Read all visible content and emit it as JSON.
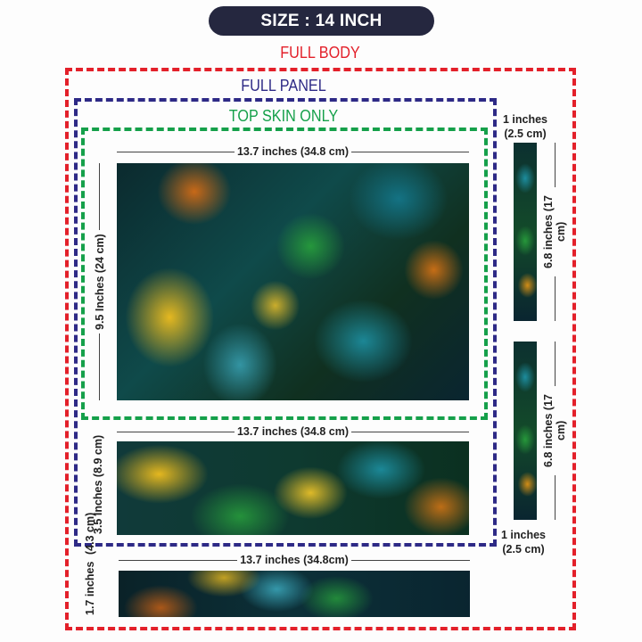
{
  "title": "SIZE : 14 INCH",
  "sections": {
    "full_body": {
      "label": "FULL BODY",
      "color": "#e3202a"
    },
    "full_panel": {
      "label": "FULL PANEL",
      "color": "#2e2a86"
    },
    "top_skin": {
      "label": "TOP SKIN ONLY",
      "color": "#15a04a"
    }
  },
  "top_skin": {
    "width_label": "13.7 inches (34.8 cm)",
    "height_label": "9.5 Inches (24 cm)"
  },
  "bottom_panel": {
    "width_label": "13.7 inches (34.8 cm)",
    "height_label": "3.5 Inches (8.9 cm)"
  },
  "front_strip": {
    "width_label": "13.7 inches (34.8cm)",
    "height_line1": "1.7 inches",
    "height_line2": "(4.3 cm)"
  },
  "side_strips": {
    "top_width_line1": "1 inches",
    "top_width_line2": "(2.5 cm)",
    "strip1_height": "6.8 inches (17 cm)",
    "strip2_height": "6.8 inches (17 cm)",
    "bottom_width_line1": "1 inches",
    "bottom_width_line2": "(2.5 cm)"
  }
}
